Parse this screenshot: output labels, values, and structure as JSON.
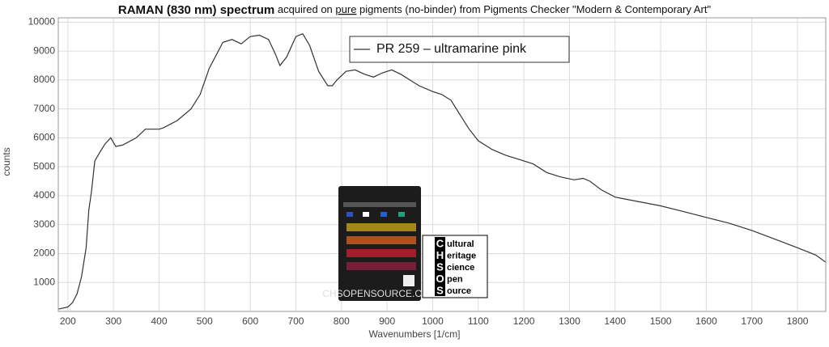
{
  "chart_data": {
    "type": "line",
    "title": {
      "bold": "RAMAN (830 nm) spectrum",
      "pre": " acquired on ",
      "underlined": "pure",
      "post": " pigments (no-binder) from Pigments Checker \"Modern & Contemporary Art\""
    },
    "x_label": "Wavenumbers [1/cm]",
    "y_label": "counts",
    "xlim": [
      179,
      1862
    ],
    "ylim": [
      0,
      10150
    ],
    "xticks": [
      200,
      300,
      400,
      500,
      600,
      700,
      800,
      900,
      1000,
      1100,
      1200,
      1300,
      1400,
      1500,
      1600,
      1700,
      1800
    ],
    "yticks": [
      1000,
      2000,
      3000,
      4000,
      5000,
      6000,
      7000,
      8000,
      9000,
      10000
    ],
    "grid": true,
    "legend": "top",
    "x": [
      180,
      200,
      210,
      220,
      230,
      240,
      246,
      252,
      259,
      270,
      282,
      294,
      305,
      320,
      350,
      370,
      400,
      410,
      440,
      470,
      490,
      510,
      540,
      560,
      580,
      600,
      620,
      640,
      655,
      665,
      680,
      700,
      715,
      730,
      750,
      770,
      780,
      790,
      810,
      830,
      850,
      870,
      890,
      910,
      930,
      950,
      970,
      1000,
      1020,
      1040,
      1060,
      1080,
      1100,
      1130,
      1160,
      1190,
      1220,
      1250,
      1280,
      1310,
      1330,
      1345,
      1370,
      1400,
      1450,
      1500,
      1550,
      1600,
      1650,
      1700,
      1750,
      1800,
      1840,
      1862
    ],
    "series": [
      {
        "name": "PR 259 – ultramarine pink",
        "color": "#333333",
        "values": [
          80,
          150,
          300,
          600,
          1200,
          2200,
          3500,
          4170,
          5200,
          5500,
          5800,
          6000,
          5700,
          5750,
          6000,
          6300,
          6300,
          6350,
          6600,
          7000,
          7500,
          8400,
          9300,
          9400,
          9250,
          9500,
          9550,
          9400,
          8900,
          8500,
          8800,
          9500,
          9600,
          9200,
          8300,
          7800,
          7800,
          8000,
          8300,
          8350,
          8200,
          8100,
          8250,
          8350,
          8200,
          8000,
          7800,
          7600,
          7500,
          7300,
          6800,
          6300,
          5900,
          5600,
          5400,
          5250,
          5100,
          4800,
          4650,
          4550,
          4600,
          4500,
          4200,
          3950,
          3800,
          3650,
          3450,
          3250,
          3050,
          2800,
          2500,
          2200,
          1950,
          1700
        ]
      }
    ]
  },
  "logo": {
    "letters": [
      "C",
      "H",
      "S",
      "O",
      "S"
    ],
    "words": [
      "ultural",
      "eritage",
      "cience",
      "pen",
      "ource"
    ]
  },
  "card": {
    "footer": "CHSOPENSOURCE.ORG"
  }
}
